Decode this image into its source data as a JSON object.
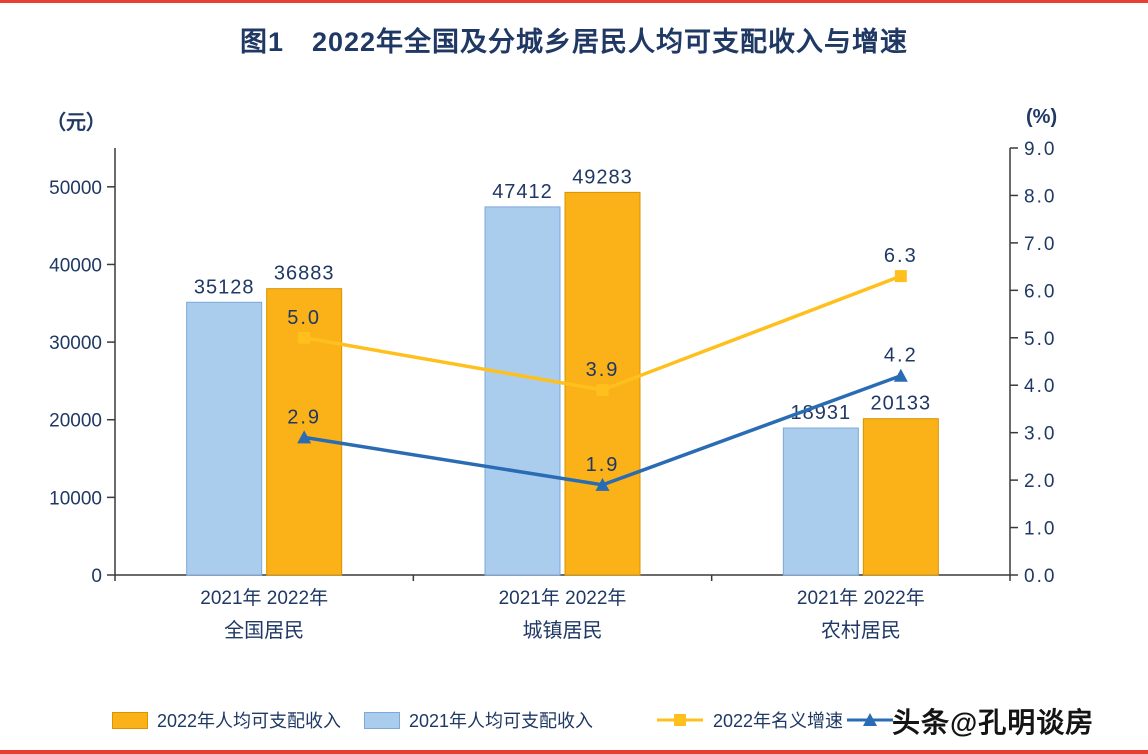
{
  "page": {
    "title": "图1　2022年全国及分城乡居民人均可支配收入与增速",
    "watermark": "头条@孔明谈房"
  },
  "colors": {
    "title": "#1f3864",
    "label": "#1f3864",
    "axis": "#3a3a3a",
    "frame": "#e8402f",
    "watermark": "#141414",
    "background": "#ffffff"
  },
  "chart_data": {
    "type": "bar",
    "subtype": "grouped bars with two overlay line series (dual axis)",
    "title": "图1　2022年全国及分城乡居民人均可支配收入与增速",
    "groups": [
      "全国居民",
      "城镇居民",
      "农村居民"
    ],
    "x_pair_label": "2021年 2022年",
    "bar_series": [
      {
        "name": "2021年人均可支配收入",
        "color": "#aacdee",
        "border": "#7ea8d8",
        "values": [
          35128,
          47412,
          18931
        ]
      },
      {
        "name": "2022年人均可支配收入",
        "color": "#fbb118",
        "border": "#d99400",
        "values": [
          36883,
          49283,
          20133
        ]
      }
    ],
    "line_series": [
      {
        "name": "2022年名义增速",
        "color": "#ffc01e",
        "marker": "square",
        "values": [
          5.0,
          3.9,
          6.3
        ]
      },
      {
        "name": "",
        "color": "#2a6cb3",
        "marker": "triangle",
        "values": [
          2.9,
          1.9,
          4.2
        ]
      }
    ],
    "y_left": {
      "unit": "（元）",
      "min": 0,
      "max": 55000,
      "ticks": [
        {
          "v": 0,
          "label": "0"
        },
        {
          "v": 10000,
          "label": "10000"
        },
        {
          "v": 20000,
          "label": "20000"
        },
        {
          "v": 30000,
          "label": "30000"
        },
        {
          "v": 40000,
          "label": "40000"
        },
        {
          "v": 50000,
          "label": "50000"
        }
      ]
    },
    "y_right": {
      "unit": "(%)",
      "min": 0,
      "max": 9,
      "ticks": [
        {
          "v": 0,
          "label": "0.0"
        },
        {
          "v": 1,
          "label": "1.0"
        },
        {
          "v": 2,
          "label": "2.0"
        },
        {
          "v": 3,
          "label": "3.0"
        },
        {
          "v": 4,
          "label": "4.0"
        },
        {
          "v": 5,
          "label": "5.0"
        },
        {
          "v": 6,
          "label": "6.0"
        },
        {
          "v": 7,
          "label": "7.0"
        },
        {
          "v": 8,
          "label": "8.0"
        },
        {
          "v": 9,
          "label": "9.0"
        }
      ]
    },
    "grid": false,
    "legend_position": "bottom"
  },
  "legend": {
    "items": [
      {
        "label": "2022年人均可支配收入",
        "swatch": "bar",
        "color": "#fbb118",
        "border": "#d99400"
      },
      {
        "label": "2021年人均可支配收入",
        "swatch": "bar",
        "color": "#aacdee",
        "border": "#7ea8d8"
      },
      {
        "label": "2022年名义增速",
        "swatch": "line-square",
        "color": "#ffc01e"
      },
      {
        "label": "",
        "swatch": "line-triangle",
        "color": "#2a6cb3"
      }
    ]
  }
}
